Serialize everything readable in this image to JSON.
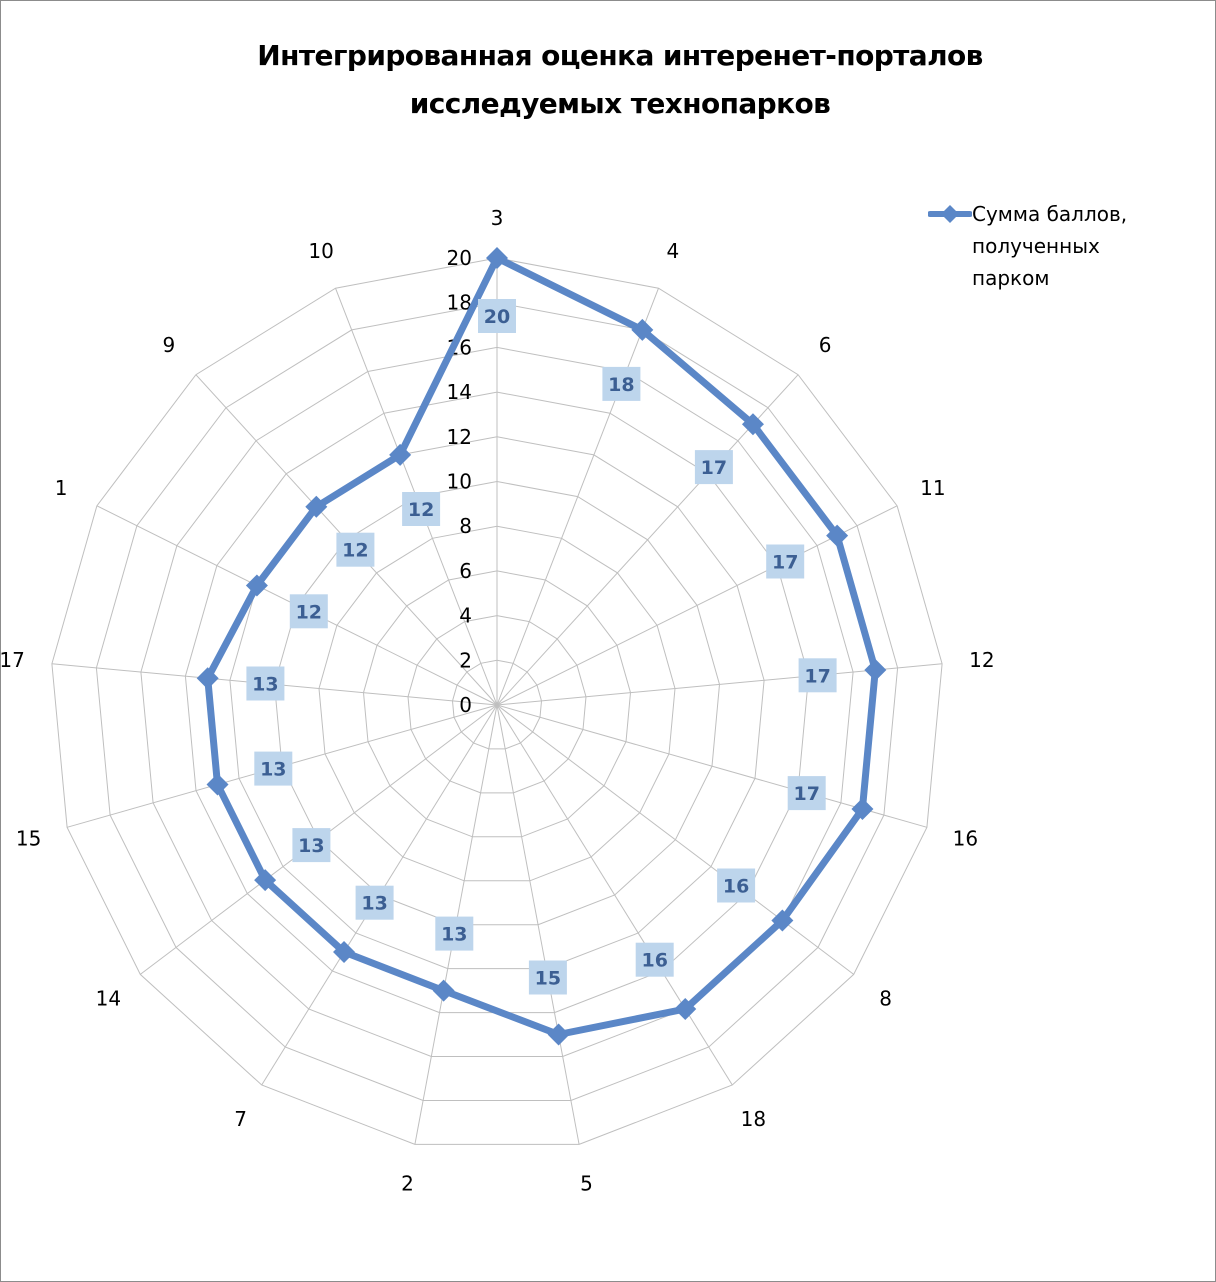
{
  "chart_data": {
    "type": "radar",
    "title_lines": [
      "Интегрированная оценка интеренет-порталов",
      "исследуемых технопарков"
    ],
    "categories": [
      "3",
      "4",
      "6",
      "11",
      "12",
      "16",
      "8",
      "18",
      "5",
      "2",
      "7",
      "14",
      "15",
      "17",
      "1",
      "9",
      "10"
    ],
    "series": [
      {
        "name": "Сумма баллов, полученных парком",
        "values": [
          20,
          18,
          17,
          17,
          17,
          17,
          16,
          16,
          15,
          13,
          13,
          13,
          13,
          13,
          12,
          12,
          12
        ]
      }
    ],
    "ticks": [
      "0",
      "2",
      "4",
      "6",
      "8",
      "10",
      "12",
      "14",
      "16",
      "18",
      "20"
    ],
    "rlim": [
      0,
      20
    ],
    "grid": true,
    "legend": "top-right",
    "colors": {
      "series": "#5b87c7",
      "grid": "#bfbfbf",
      "data_label_bg": "#bdd5ec",
      "data_label_text": "#3c5f93"
    }
  }
}
